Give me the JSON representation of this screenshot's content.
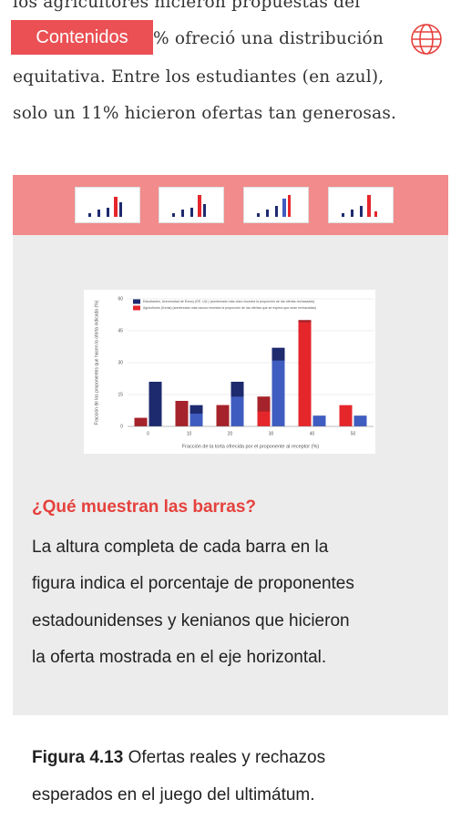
{
  "intro": {
    "lines": [
      "los agricultores hicieron propuestas del",
      "% ofreció una distribución",
      "equitativa. Entre los estudiantes (en azul),",
      "solo un 11% hicieron ofertas tan generosas."
    ]
  },
  "toolbar": {
    "button": "Contenidos"
  },
  "chart_data": {
    "type": "bar",
    "ylabel": "Fracción de los proponentes que hacen la oferta indicada (%)",
    "xlabel": "Fracción de la torta ofrecida por el proponente al receptor (%)",
    "categories": [
      "0",
      "10",
      "20",
      "30",
      "40",
      "50"
    ],
    "series": [
      {
        "name": "Estudiantes, Universidad de Emory (EE. UU.) (sombreado más claro muestra la proporción de las ofertas rechazadas)",
        "color": "#1e2a6e",
        "shade_color": "#3f5cc0",
        "shade_from": "bottom",
        "values": [
          21,
          10,
          21,
          37,
          5,
          5
        ],
        "shaded": [
          0,
          6,
          14,
          31,
          5,
          5
        ]
      },
      {
        "name": "Agricultores (Kenia) (sombreado más oscuro muestra la proporción de las ofertas que se espera que sean rechazadas)",
        "color": "#e5262b",
        "shade_color": "#a5232a",
        "shade_from": "top",
        "values": [
          4,
          12,
          10,
          14,
          50,
          10
        ],
        "shaded": [
          4,
          12,
          10,
          7,
          1,
          0
        ]
      }
    ],
    "ylim": [
      0,
      60
    ],
    "yticks": [
      0,
      15,
      30,
      45,
      60
    ],
    "grid": true
  },
  "explainer": {
    "heading": "¿Qué muestran las barras?",
    "lines": [
      "La altura completa de cada barra en la",
      "figura indica el porcentaje de proponentes",
      "estadounidenses y kenianos que hicieron",
      "la oferta mostrada en el eje horizontal."
    ]
  },
  "caption": {
    "label": "Figura 4.13",
    "lines": [
      "Ofertas reales y rechazos",
      "esperados en el juego del ultimátum."
    ]
  }
}
